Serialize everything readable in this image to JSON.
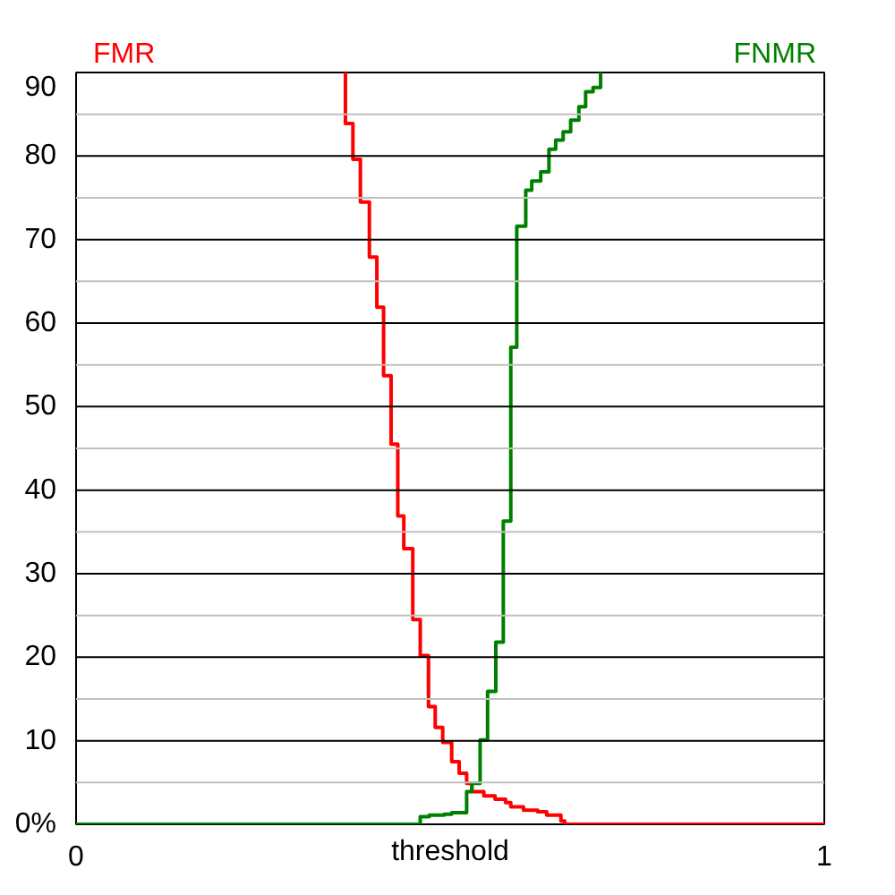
{
  "chart_data": {
    "type": "step",
    "xlabel": "threshold",
    "xlim": [
      0,
      1
    ],
    "xticks": [
      0,
      1
    ],
    "ylim": [
      0,
      90
    ],
    "yticks": [
      {
        "value": 0,
        "label": "0%"
      },
      {
        "value": 5,
        "label": null
      },
      10,
      {
        "value": 15,
        "label": null
      },
      20,
      {
        "value": 25,
        "label": null
      },
      30,
      {
        "value": 35,
        "label": null
      },
      40,
      {
        "value": 45,
        "label": null
      },
      50,
      {
        "value": 55,
        "label": null
      },
      60,
      {
        "value": 65,
        "label": null
      },
      70,
      {
        "value": 75,
        "label": null
      },
      80,
      {
        "value": 85,
        "label": null
      },
      90
    ],
    "grid": "y",
    "marker": "none",
    "line_style": "solid",
    "series": [
      {
        "name": "FMR",
        "color": "#ff0000",
        "x": [
          0.36,
          0.36,
          0.37,
          0.38,
          0.392,
          0.402,
          0.411,
          0.421,
          0.43,
          0.438,
          0.45,
          0.46,
          0.471,
          0.48,
          0.49,
          0.502,
          0.512,
          0.522,
          0.529,
          0.545,
          0.56,
          0.574,
          0.581,
          0.598,
          0.617,
          0.629,
          0.648,
          0.653,
          1.0
        ],
        "values": [
          90,
          83.9,
          79.6,
          74.5,
          67.9,
          61.9,
          53.7,
          45.5,
          36.9,
          33.0,
          24.5,
          20.2,
          14.1,
          11.6,
          9.8,
          7.5,
          6.1,
          4.9,
          3.9,
          3.4,
          3.0,
          2.6,
          2.1,
          1.7,
          1.5,
          1.1,
          0.4,
          0,
          0
        ]
      },
      {
        "name": "FNMR",
        "color": "#008000",
        "x": [
          0,
          0.46,
          0.472,
          0.492,
          0.502,
          0.522,
          0.529,
          0.54,
          0.55,
          0.561,
          0.571,
          0.581,
          0.589,
          0.601,
          0.609,
          0.621,
          0.632,
          0.641,
          0.651,
          0.661,
          0.672,
          0.681,
          0.691,
          0.701
        ],
        "values": [
          0,
          0.9,
          1.1,
          1.2,
          1.4,
          3.9,
          4.9,
          10.1,
          15.9,
          21.8,
          36.3,
          57.1,
          71.6,
          75.9,
          77.0,
          78.1,
          80.8,
          81.9,
          82.9,
          84.3,
          85.9,
          87.7,
          88.2,
          90
        ]
      }
    ]
  }
}
